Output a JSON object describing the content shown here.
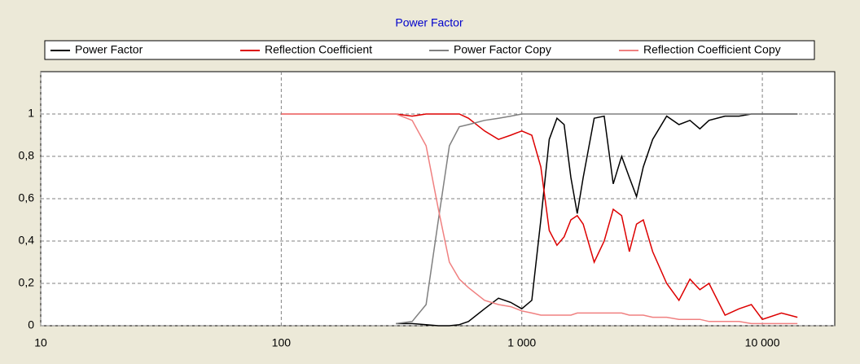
{
  "chart_data": {
    "type": "line",
    "title": "Power Factor",
    "log_x": true,
    "grid": true,
    "legend": "top",
    "xlim": [
      10,
      20000
    ],
    "ylim": [
      0,
      1.2
    ],
    "xticks": [
      10,
      100,
      {
        "value": 1000,
        "label": "1 000"
      },
      {
        "value": 10000,
        "label": "10 000"
      }
    ],
    "yticks": [
      0,
      {
        "value": 0.2,
        "label": "0,2"
      },
      {
        "value": 0.4,
        "label": "0,4"
      },
      {
        "value": 0.6,
        "label": "0,6"
      },
      {
        "value": 0.8,
        "label": "0,8"
      },
      1
    ],
    "x": [
      100,
      150,
      200,
      250,
      300,
      350,
      400,
      450,
      500,
      550,
      600,
      700,
      800,
      900,
      1000,
      1100,
      1200,
      1300,
      1400,
      1500,
      1600,
      1700,
      1800,
      2000,
      2200,
      2400,
      2600,
      2800,
      3000,
      3200,
      3500,
      4000,
      4500,
      5000,
      5500,
      6000,
      7000,
      8000,
      9000,
      10000,
      12000,
      14000
    ],
    "series": [
      {
        "name": "Power Factor",
        "color": "#000000",
        "values": [
          null,
          null,
          null,
          null,
          0.01,
          0.01,
          0.005,
          0,
          0,
          0.005,
          0.02,
          0.08,
          0.13,
          0.11,
          0.08,
          0.12,
          0.5,
          0.88,
          0.98,
          0.95,
          0.7,
          0.53,
          0.7,
          0.98,
          0.99,
          0.67,
          0.8,
          0.7,
          0.61,
          0.75,
          0.88,
          0.99,
          0.95,
          0.97,
          0.93,
          0.97,
          0.99,
          0.99,
          1,
          1,
          1,
          1
        ]
      },
      {
        "name": "Reflection Coefficient",
        "color": "#dd0000",
        "values": [
          1,
          1,
          1,
          1,
          1,
          0.99,
          1,
          1,
          1,
          1,
          0.98,
          0.92,
          0.88,
          0.9,
          0.92,
          0.9,
          0.75,
          0.45,
          0.38,
          0.42,
          0.5,
          0.52,
          0.48,
          0.3,
          0.4,
          0.55,
          0.52,
          0.35,
          0.48,
          0.5,
          0.35,
          0.2,
          0.12,
          0.22,
          0.17,
          0.2,
          0.05,
          0.08,
          0.1,
          0.03,
          0.06,
          0.04
        ]
      },
      {
        "name": "Power Factor Copy",
        "color": "#808080",
        "values": [
          null,
          null,
          null,
          null,
          0.01,
          0.02,
          0.1,
          0.5,
          0.85,
          0.94,
          0.95,
          0.97,
          0.98,
          0.99,
          1,
          1,
          1,
          1,
          1,
          1,
          1,
          1,
          1,
          1,
          1,
          1,
          1,
          1,
          1,
          1,
          1,
          1,
          1,
          1,
          1,
          1,
          1,
          1,
          1,
          1,
          1,
          1
        ]
      },
      {
        "name": "Reflection Coefficient Copy",
        "color": "#f08080",
        "values": [
          1,
          1,
          1,
          1,
          1,
          0.97,
          0.85,
          0.55,
          0.3,
          0.22,
          0.18,
          0.12,
          0.1,
          0.09,
          0.07,
          0.06,
          0.05,
          0.05,
          0.05,
          0.05,
          0.05,
          0.06,
          0.06,
          0.06,
          0.06,
          0.06,
          0.06,
          0.05,
          0.05,
          0.05,
          0.04,
          0.04,
          0.03,
          0.03,
          0.03,
          0.02,
          0.02,
          0.02,
          0.01,
          0.01,
          0.01,
          0.01
        ]
      }
    ]
  }
}
